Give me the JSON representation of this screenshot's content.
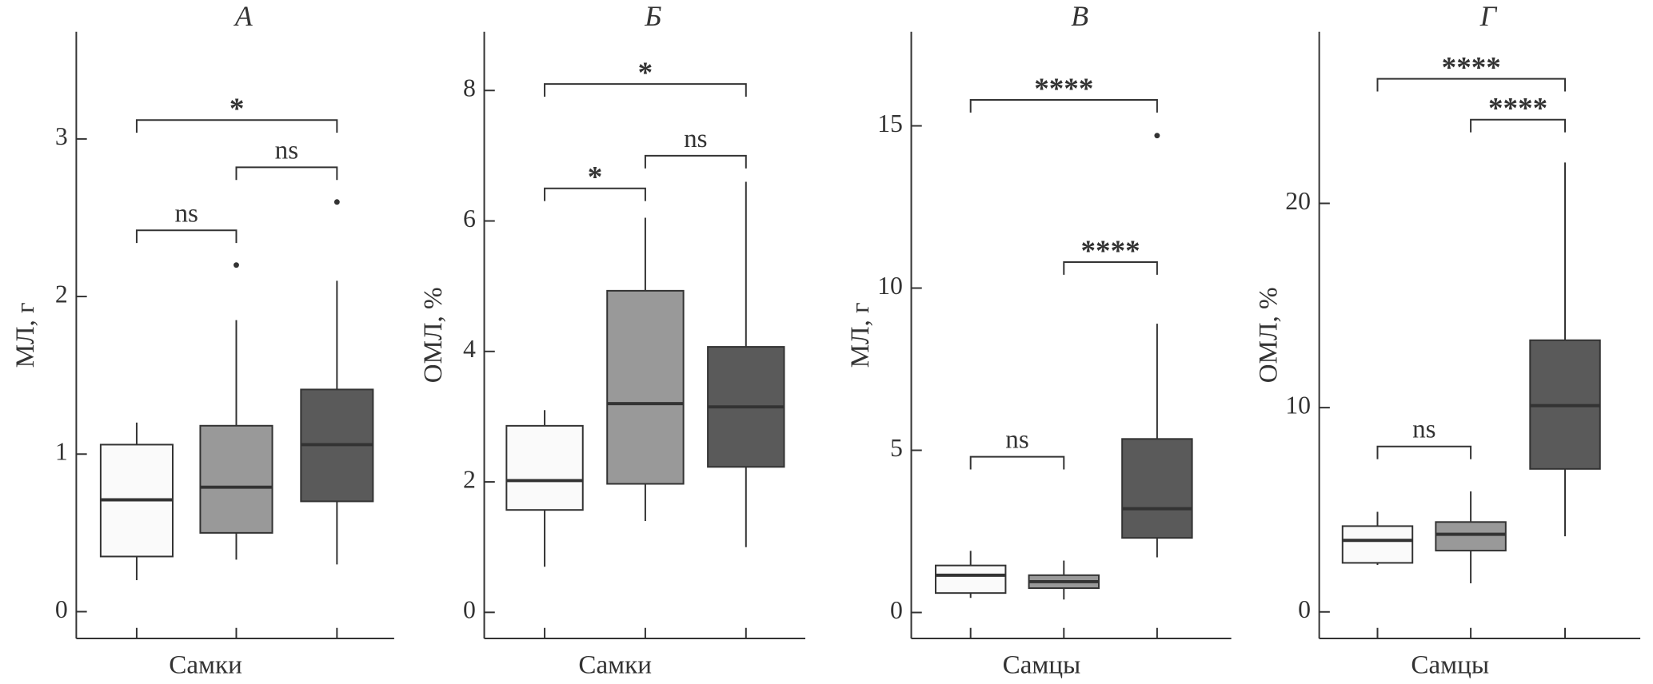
{
  "chart_data": [
    {
      "type": "box",
      "title": "А",
      "ylabel": "МЛ, г",
      "xlabel": "Самки",
      "ylim": [
        -0.17,
        3.68
      ],
      "yticks": [
        0,
        1,
        2,
        3
      ],
      "colors": [
        "#fafafa",
        "#999999",
        "#5a5a5a"
      ],
      "boxes": [
        {
          "whislo": 0.2,
          "q1": 0.35,
          "med": 0.71,
          "q3": 1.06,
          "whishi": 1.2,
          "fliers": []
        },
        {
          "whislo": 0.33,
          "q1": 0.5,
          "med": 0.79,
          "q3": 1.18,
          "whishi": 1.85,
          "fliers": [
            2.2
          ]
        },
        {
          "whislo": 0.3,
          "q1": 0.7,
          "med": 1.06,
          "q3": 1.41,
          "whishi": 2.1,
          "fliers": [
            2.6
          ]
        }
      ],
      "annotations": [
        {
          "from": 0,
          "to": 1,
          "y": 2.42,
          "label": "ns"
        },
        {
          "from": 1,
          "to": 2,
          "y": 2.82,
          "label": "ns"
        },
        {
          "from": 0,
          "to": 2,
          "y": 3.12,
          "label": "*"
        }
      ]
    },
    {
      "type": "box",
      "title": "Б",
      "ylabel": "ОМЛ, %",
      "xlabel": "Самки",
      "ylim": [
        -0.4,
        8.9
      ],
      "yticks": [
        0,
        2,
        4,
        6,
        8
      ],
      "colors": [
        "#fafafa",
        "#999999",
        "#5a5a5a"
      ],
      "boxes": [
        {
          "whislo": 0.7,
          "q1": 1.57,
          "med": 2.02,
          "q3": 2.86,
          "whishi": 3.1,
          "fliers": []
        },
        {
          "whislo": 1.4,
          "q1": 1.97,
          "med": 3.2,
          "q3": 4.93,
          "whishi": 6.05,
          "fliers": []
        },
        {
          "whislo": 1.0,
          "q1": 2.23,
          "med": 3.15,
          "q3": 4.07,
          "whishi": 6.6,
          "fliers": []
        }
      ],
      "annotations": [
        {
          "from": 0,
          "to": 1,
          "y": 6.5,
          "label": "*"
        },
        {
          "from": 1,
          "to": 2,
          "y": 7.0,
          "label": "ns"
        },
        {
          "from": 0,
          "to": 2,
          "y": 8.1,
          "label": "*"
        }
      ]
    },
    {
      "type": "box",
      "title": "В",
      "ylabel": "МЛ, г",
      "xlabel": "Самцы",
      "ylim": [
        -0.8,
        17.9
      ],
      "yticks": [
        0,
        5,
        10,
        15
      ],
      "colors": [
        "#fafafa",
        "#999999",
        "#5a5a5a"
      ],
      "boxes": [
        {
          "whislo": 0.45,
          "q1": 0.6,
          "med": 1.15,
          "q3": 1.45,
          "whishi": 1.9,
          "fliers": []
        },
        {
          "whislo": 0.4,
          "q1": 0.75,
          "med": 0.95,
          "q3": 1.15,
          "whishi": 1.6,
          "fliers": []
        },
        {
          "whislo": 1.7,
          "q1": 2.3,
          "med": 3.2,
          "q3": 5.35,
          "whishi": 8.9,
          "fliers": [
            14.7
          ]
        }
      ],
      "annotations": [
        {
          "from": 0,
          "to": 1,
          "y": 4.8,
          "label": "ns"
        },
        {
          "from": 1,
          "to": 2,
          "y": 10.8,
          "label": "****"
        },
        {
          "from": 0,
          "to": 2,
          "y": 15.8,
          "label": "****"
        }
      ]
    },
    {
      "type": "box",
      "title": "Г",
      "ylabel": "ОМЛ, %",
      "xlabel": "Самцы",
      "ylim": [
        -1.3,
        28.4
      ],
      "yticks": [
        0,
        10,
        20
      ],
      "colors": [
        "#fafafa",
        "#999999",
        "#5a5a5a"
      ],
      "boxes": [
        {
          "whislo": 2.3,
          "q1": 2.4,
          "med": 3.5,
          "q3": 4.2,
          "whishi": 4.9,
          "fliers": []
        },
        {
          "whislo": 1.4,
          "q1": 3.0,
          "med": 3.8,
          "q3": 4.4,
          "whishi": 5.9,
          "fliers": []
        },
        {
          "whislo": 3.7,
          "q1": 7.0,
          "med": 10.1,
          "q3": 13.3,
          "whishi": 22,
          "fliers": []
        }
      ],
      "annotations": [
        {
          "from": 0,
          "to": 1,
          "y": 8.1,
          "label": "ns"
        },
        {
          "from": 1,
          "to": 2,
          "y": 24.1,
          "label": "****"
        },
        {
          "from": 0,
          "to": 2,
          "y": 26.1,
          "label": "****"
        }
      ]
    }
  ]
}
